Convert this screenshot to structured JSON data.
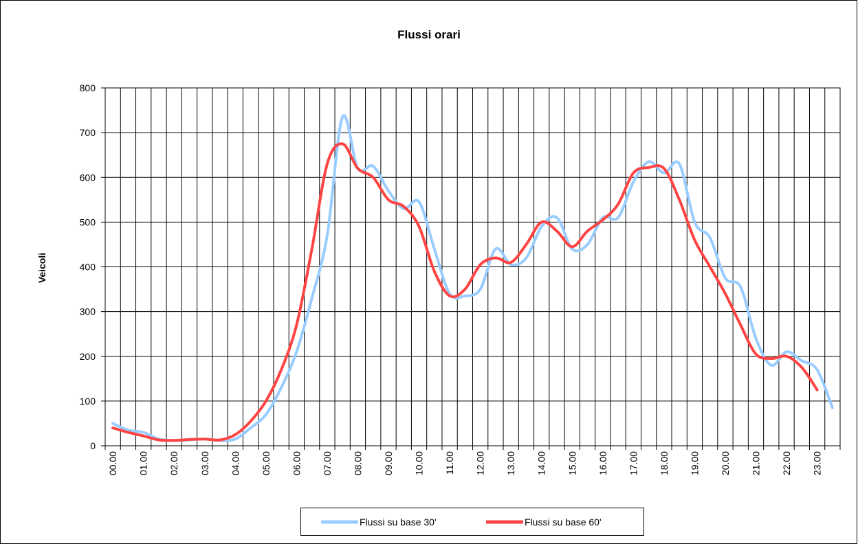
{
  "chart_data": {
    "type": "line",
    "title": "Flussi orari",
    "y_label": "Veicoli",
    "categories": [
      "00.00",
      null,
      "01.00",
      null,
      "02.00",
      null,
      "03.00",
      null,
      "04.00",
      null,
      "05.00",
      null,
      "06.00",
      null,
      "07.00",
      null,
      "08.00",
      null,
      "09.00",
      null,
      "10.00",
      null,
      "11.00",
      null,
      "12.00",
      null,
      "13.00",
      null,
      "14.00",
      null,
      "15.00",
      null,
      "16.00",
      null,
      "17.00",
      null,
      "18.00",
      null,
      "19.00",
      null,
      "20.00",
      null,
      "21.00",
      null,
      "22.00",
      null,
      "23.00",
      null
    ],
    "series": [
      {
        "name": "Flussi su base 30'",
        "color": "#99ccff",
        "values": [
          50,
          35,
          30,
          15,
          12,
          13,
          15,
          12,
          15,
          40,
          70,
          130,
          210,
          330,
          470,
          735,
          620,
          625,
          570,
          530,
          545,
          440,
          340,
          335,
          350,
          440,
          405,
          420,
          490,
          510,
          440,
          450,
          510,
          510,
          590,
          635,
          610,
          630,
          500,
          465,
          375,
          355,
          240,
          180,
          210,
          190,
          170,
          85
        ]
      },
      {
        "name": "Flussi su base 60'",
        "color": "#ff4444",
        "values": [
          40,
          30,
          22,
          13,
          12,
          14,
          15,
          13,
          25,
          55,
          100,
          170,
          270,
          440,
          630,
          675,
          620,
          600,
          550,
          535,
          490,
          390,
          335,
          350,
          405,
          420,
          410,
          450,
          500,
          480,
          445,
          480,
          505,
          540,
          610,
          622,
          620,
          550,
          460,
          400,
          340,
          270,
          205,
          195,
          200,
          175,
          125,
          null
        ]
      }
    ],
    "ylim": [
      0,
      800
    ],
    "yticks": [
      0,
      100,
      200,
      300,
      400,
      500,
      600,
      700,
      800
    ],
    "grid": true,
    "legend": "bottom"
  }
}
